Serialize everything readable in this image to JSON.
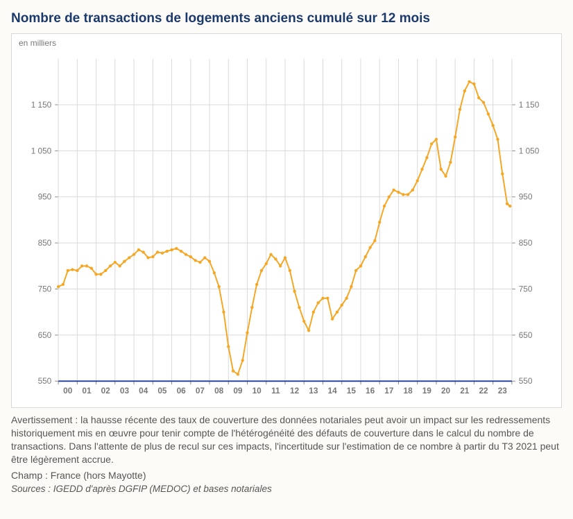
{
  "title": "Nombre de transactions de logements anciens cumulé sur 12 mois",
  "chart": {
    "type": "line",
    "y_unit_label": "en milliers",
    "line_color": "#f5a623",
    "marker_color": "#f5a623",
    "line_width": 2,
    "marker_radius": 2.2,
    "background_color": "#ffffff",
    "border_color": "#d8d8d8",
    "grid_color": "#d9d9d9",
    "axis_tick_color": "#888888",
    "axis_label_color": "#777777",
    "axis_label_fontsize": 12,
    "baseline_color": "#1b3a9b",
    "baseline_width": 2,
    "x_labels": [
      "00",
      "01",
      "02",
      "03",
      "04",
      "05",
      "06",
      "07",
      "08",
      "09",
      "10",
      "11",
      "12",
      "13",
      "14",
      "15",
      "16",
      "17",
      "18",
      "19",
      "20",
      "21",
      "22",
      "23"
    ],
    "x_start_year": 2000,
    "x_end_year": 2024,
    "ylim": [
      550,
      1250
    ],
    "ytick_step": 100,
    "yticks": [
      550,
      650,
      750,
      850,
      950,
      1050,
      1150
    ],
    "series": [
      {
        "name": "transactions",
        "data": [
          [
            2000.0,
            755
          ],
          [
            2000.25,
            760
          ],
          [
            2000.5,
            790
          ],
          [
            2000.75,
            792
          ],
          [
            2001.0,
            790
          ],
          [
            2001.25,
            800
          ],
          [
            2001.5,
            800
          ],
          [
            2001.75,
            795
          ],
          [
            2002.0,
            782
          ],
          [
            2002.25,
            782
          ],
          [
            2002.5,
            790
          ],
          [
            2002.75,
            800
          ],
          [
            2003.0,
            808
          ],
          [
            2003.25,
            800
          ],
          [
            2003.5,
            810
          ],
          [
            2003.75,
            818
          ],
          [
            2004.0,
            825
          ],
          [
            2004.25,
            835
          ],
          [
            2004.5,
            830
          ],
          [
            2004.75,
            818
          ],
          [
            2005.0,
            820
          ],
          [
            2005.25,
            830
          ],
          [
            2005.5,
            828
          ],
          [
            2005.75,
            832
          ],
          [
            2006.0,
            835
          ],
          [
            2006.25,
            838
          ],
          [
            2006.5,
            832
          ],
          [
            2006.75,
            825
          ],
          [
            2007.0,
            820
          ],
          [
            2007.25,
            812
          ],
          [
            2007.5,
            808
          ],
          [
            2007.75,
            818
          ],
          [
            2008.0,
            810
          ],
          [
            2008.25,
            785
          ],
          [
            2008.5,
            755
          ],
          [
            2008.75,
            700
          ],
          [
            2009.0,
            625
          ],
          [
            2009.25,
            572
          ],
          [
            2009.5,
            565
          ],
          [
            2009.75,
            595
          ],
          [
            2010.0,
            655
          ],
          [
            2010.25,
            710
          ],
          [
            2010.5,
            760
          ],
          [
            2010.75,
            790
          ],
          [
            2011.0,
            805
          ],
          [
            2011.25,
            825
          ],
          [
            2011.5,
            815
          ],
          [
            2011.75,
            800
          ],
          [
            2012.0,
            818
          ],
          [
            2012.25,
            790
          ],
          [
            2012.5,
            745
          ],
          [
            2012.75,
            710
          ],
          [
            2013.0,
            680
          ],
          [
            2013.25,
            660
          ],
          [
            2013.5,
            700
          ],
          [
            2013.75,
            720
          ],
          [
            2014.0,
            730
          ],
          [
            2014.25,
            730
          ],
          [
            2014.5,
            685
          ],
          [
            2014.75,
            700
          ],
          [
            2015.0,
            715
          ],
          [
            2015.25,
            730
          ],
          [
            2015.5,
            755
          ],
          [
            2015.75,
            790
          ],
          [
            2016.0,
            800
          ],
          [
            2016.25,
            820
          ],
          [
            2016.5,
            840
          ],
          [
            2016.75,
            855
          ],
          [
            2017.0,
            895
          ],
          [
            2017.25,
            930
          ],
          [
            2017.5,
            950
          ],
          [
            2017.75,
            965
          ],
          [
            2018.0,
            960
          ],
          [
            2018.25,
            955
          ],
          [
            2018.5,
            955
          ],
          [
            2018.75,
            965
          ],
          [
            2019.0,
            985
          ],
          [
            2019.25,
            1010
          ],
          [
            2019.5,
            1035
          ],
          [
            2019.75,
            1065
          ],
          [
            2020.0,
            1075
          ],
          [
            2020.25,
            1010
          ],
          [
            2020.5,
            995
          ],
          [
            2020.75,
            1025
          ],
          [
            2021.0,
            1080
          ],
          [
            2021.25,
            1140
          ],
          [
            2021.5,
            1180
          ],
          [
            2021.75,
            1200
          ],
          [
            2022.0,
            1195
          ],
          [
            2022.25,
            1165
          ],
          [
            2022.5,
            1155
          ],
          [
            2022.75,
            1130
          ],
          [
            2023.0,
            1105
          ],
          [
            2023.25,
            1075
          ],
          [
            2023.5,
            1000
          ],
          [
            2023.75,
            935
          ],
          [
            2023.9,
            930
          ]
        ]
      }
    ]
  },
  "warning_text": "Avertissement : la hausse récente des taux de couverture des données notariales peut avoir un impact sur les redressements historiquement mis en œuvre pour tenir compte de l'hétérogénéité des défauts de couverture dans le calcul du nombre de transactions. Dans l'attente de plus de recul sur ces impacts, l'incertitude sur l'estimation de ce nombre à partir du T3 2021 peut être légèrement accrue.",
  "champ_text": "Champ : France (hors Mayotte)",
  "sources_text": "Sources : IGEDD d'après DGFIP (MEDOC) et bases notariales"
}
